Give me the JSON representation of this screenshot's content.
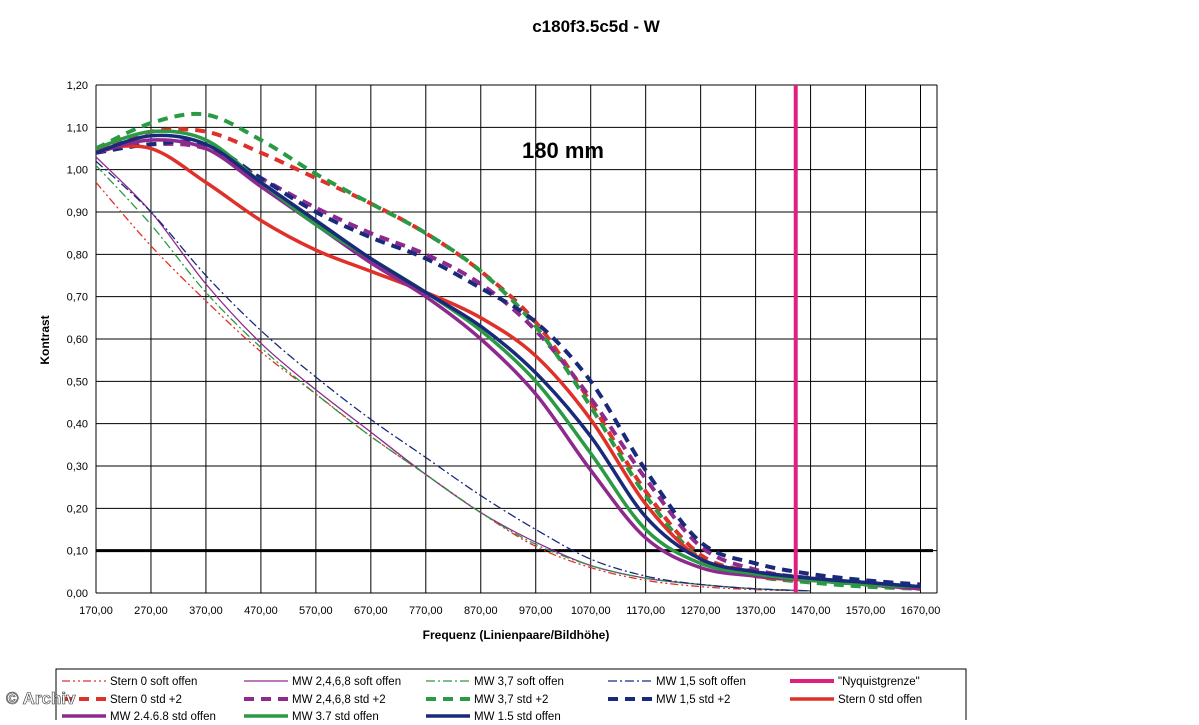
{
  "chart_data": {
    "type": "line",
    "title": "c180f3.5c5d - W",
    "xlabel": "Frequenz (Linienpaare/Bildhöhe)",
    "ylabel": "Kontrast",
    "annotation": "180 mm",
    "watermark": "© Archiv",
    "xlim": [
      170,
      1700
    ],
    "ylim": [
      0,
      1.2
    ],
    "x_ticks": [
      "170,00",
      "270,00",
      "370,00",
      "470,00",
      "570,00",
      "670,00",
      "770,00",
      "870,00",
      "970,00",
      "1070,00",
      "1170,00",
      "1270,00",
      "1370,00",
      "1470,00",
      "1570,00",
      "1670,00"
    ],
    "y_ticks": [
      "0,00",
      "0,10",
      "0,20",
      "0,30",
      "0,40",
      "0,50",
      "0,60",
      "0,70",
      "0,80",
      "0,90",
      "1,00",
      "1,10",
      "1,20"
    ],
    "grid": true,
    "legend_position": "bottom",
    "threshold": {
      "y": 0.1
    },
    "nyquist_x": 1443,
    "series": [
      {
        "name": "Stern 0 soft offen",
        "color": "#e0302a",
        "dash": "dashdotdot",
        "width": 1.3,
        "points": [
          [
            170,
            0.97
          ],
          [
            270,
            0.82
          ],
          [
            370,
            0.69
          ],
          [
            470,
            0.57
          ],
          [
            570,
            0.47
          ],
          [
            670,
            0.37
          ],
          [
            770,
            0.28
          ],
          [
            870,
            0.19
          ],
          [
            970,
            0.11
          ],
          [
            1070,
            0.06
          ],
          [
            1170,
            0.03
          ],
          [
            1270,
            0.015
          ],
          [
            1370,
            0.008
          ],
          [
            1470,
            0.005
          ]
        ]
      },
      {
        "name": "MW 2,4,6,8 soft offen",
        "color": "#8e2a8e",
        "dash": "solid",
        "width": 1.3,
        "points": [
          [
            170,
            1.03
          ],
          [
            270,
            0.9
          ],
          [
            370,
            0.73
          ],
          [
            470,
            0.59
          ],
          [
            570,
            0.48
          ],
          [
            670,
            0.38
          ],
          [
            770,
            0.28
          ],
          [
            870,
            0.19
          ],
          [
            970,
            0.12
          ],
          [
            1070,
            0.065
          ],
          [
            1170,
            0.035
          ],
          [
            1270,
            0.02
          ],
          [
            1370,
            0.01
          ],
          [
            1470,
            0.005
          ]
        ]
      },
      {
        "name": "MW 3,7 soft offen",
        "color": "#2a9a44",
        "dash": "dashdot",
        "width": 1.3,
        "points": [
          [
            170,
            1.01
          ],
          [
            270,
            0.87
          ],
          [
            370,
            0.71
          ],
          [
            470,
            0.58
          ],
          [
            570,
            0.47
          ],
          [
            670,
            0.37
          ],
          [
            770,
            0.28
          ],
          [
            870,
            0.19
          ],
          [
            970,
            0.115
          ],
          [
            1070,
            0.065
          ],
          [
            1170,
            0.035
          ],
          [
            1270,
            0.02
          ],
          [
            1370,
            0.01
          ],
          [
            1470,
            0.005
          ]
        ]
      },
      {
        "name": "MW 1,5 soft offen",
        "color": "#1a2a7a",
        "dash": "dashdot",
        "width": 1.3,
        "points": [
          [
            170,
            1.02
          ],
          [
            270,
            0.9
          ],
          [
            370,
            0.75
          ],
          [
            470,
            0.62
          ],
          [
            570,
            0.51
          ],
          [
            670,
            0.41
          ],
          [
            770,
            0.32
          ],
          [
            870,
            0.23
          ],
          [
            970,
            0.15
          ],
          [
            1070,
            0.08
          ],
          [
            1170,
            0.04
          ],
          [
            1270,
            0.02
          ],
          [
            1370,
            0.01
          ],
          [
            1470,
            0.005
          ]
        ]
      },
      {
        "name": "\"Nyquistgrenze\"",
        "color": "#e0207f",
        "dash": "solid",
        "width": 4,
        "vertical": true,
        "points": []
      },
      {
        "name": "Stern 0 std +2",
        "color": "#e0302a",
        "dash": "dashed",
        "width": 4,
        "points": [
          [
            170,
            1.05
          ],
          [
            270,
            1.09
          ],
          [
            370,
            1.09
          ],
          [
            470,
            1.04
          ],
          [
            570,
            0.98
          ],
          [
            670,
            0.92
          ],
          [
            770,
            0.85
          ],
          [
            870,
            0.76
          ],
          [
            970,
            0.64
          ],
          [
            1070,
            0.45
          ],
          [
            1170,
            0.24
          ],
          [
            1270,
            0.09
          ],
          [
            1370,
            0.05
          ],
          [
            1470,
            0.035
          ],
          [
            1570,
            0.02
          ],
          [
            1670,
            0.01
          ]
        ]
      },
      {
        "name": "MW 2,4,6,8 std +2",
        "color": "#8e2a8e",
        "dash": "dashed",
        "width": 4,
        "points": [
          [
            170,
            1.04
          ],
          [
            270,
            1.06
          ],
          [
            370,
            1.05
          ],
          [
            470,
            0.98
          ],
          [
            570,
            0.91
          ],
          [
            670,
            0.85
          ],
          [
            770,
            0.8
          ],
          [
            870,
            0.73
          ],
          [
            970,
            0.62
          ],
          [
            1070,
            0.46
          ],
          [
            1170,
            0.27
          ],
          [
            1270,
            0.11
          ],
          [
            1370,
            0.055
          ],
          [
            1470,
            0.035
          ],
          [
            1570,
            0.025
          ],
          [
            1670,
            0.015
          ]
        ]
      },
      {
        "name": "MW 3,7 std +2",
        "color": "#2a9a44",
        "dash": "dashed",
        "width": 4,
        "points": [
          [
            170,
            1.05
          ],
          [
            270,
            1.11
          ],
          [
            370,
            1.13
          ],
          [
            470,
            1.07
          ],
          [
            570,
            0.99
          ],
          [
            670,
            0.92
          ],
          [
            770,
            0.85
          ],
          [
            870,
            0.76
          ],
          [
            970,
            0.63
          ],
          [
            1070,
            0.44
          ],
          [
            1170,
            0.23
          ],
          [
            1270,
            0.08
          ],
          [
            1370,
            0.04
          ],
          [
            1470,
            0.025
          ],
          [
            1570,
            0.015
          ],
          [
            1670,
            0.01
          ]
        ]
      },
      {
        "name": "MW 1,5 std +2",
        "color": "#1a2a7a",
        "dash": "dashed",
        "width": 4,
        "points": [
          [
            170,
            1.04
          ],
          [
            270,
            1.06
          ],
          [
            370,
            1.06
          ],
          [
            470,
            0.98
          ],
          [
            570,
            0.9
          ],
          [
            670,
            0.84
          ],
          [
            770,
            0.79
          ],
          [
            870,
            0.72
          ],
          [
            970,
            0.64
          ],
          [
            1070,
            0.5
          ],
          [
            1170,
            0.29
          ],
          [
            1270,
            0.12
          ],
          [
            1370,
            0.07
          ],
          [
            1470,
            0.045
          ],
          [
            1570,
            0.03
          ],
          [
            1670,
            0.02
          ]
        ]
      },
      {
        "name": "Stern 0 std offen",
        "color": "#e0302a",
        "dash": "solid",
        "width": 3.5,
        "points": [
          [
            170,
            1.05
          ],
          [
            270,
            1.05
          ],
          [
            370,
            0.97
          ],
          [
            470,
            0.88
          ],
          [
            570,
            0.81
          ],
          [
            670,
            0.76
          ],
          [
            770,
            0.71
          ],
          [
            870,
            0.65
          ],
          [
            970,
            0.56
          ],
          [
            1070,
            0.41
          ],
          [
            1170,
            0.21
          ],
          [
            1270,
            0.08
          ],
          [
            1370,
            0.04
          ],
          [
            1470,
            0.03
          ],
          [
            1570,
            0.02
          ],
          [
            1670,
            0.01
          ]
        ]
      },
      {
        "name": "MW 2,4,6,8 std offen",
        "color": "#8e2a8e",
        "dash": "solid",
        "width": 3.5,
        "points": [
          [
            170,
            1.04
          ],
          [
            270,
            1.07
          ],
          [
            370,
            1.05
          ],
          [
            470,
            0.96
          ],
          [
            570,
            0.87
          ],
          [
            670,
            0.78
          ],
          [
            770,
            0.7
          ],
          [
            870,
            0.6
          ],
          [
            970,
            0.47
          ],
          [
            1070,
            0.29
          ],
          [
            1170,
            0.13
          ],
          [
            1270,
            0.06
          ],
          [
            1370,
            0.04
          ],
          [
            1470,
            0.03
          ],
          [
            1570,
            0.02
          ],
          [
            1670,
            0.01
          ]
        ]
      },
      {
        "name": "MW 3,7 std offen",
        "color": "#2a9a44",
        "dash": "solid",
        "width": 3.5,
        "points": [
          [
            170,
            1.05
          ],
          [
            270,
            1.09
          ],
          [
            370,
            1.07
          ],
          [
            470,
            0.97
          ],
          [
            570,
            0.87
          ],
          [
            670,
            0.79
          ],
          [
            770,
            0.71
          ],
          [
            870,
            0.62
          ],
          [
            970,
            0.5
          ],
          [
            1070,
            0.33
          ],
          [
            1170,
            0.15
          ],
          [
            1270,
            0.07
          ],
          [
            1370,
            0.045
          ],
          [
            1470,
            0.03
          ],
          [
            1570,
            0.02
          ],
          [
            1670,
            0.015
          ]
        ]
      },
      {
        "name": "MW 1,5 std offen",
        "color": "#1a2a7a",
        "dash": "solid",
        "width": 3.5,
        "points": [
          [
            170,
            1.04
          ],
          [
            270,
            1.08
          ],
          [
            370,
            1.06
          ],
          [
            470,
            0.97
          ],
          [
            570,
            0.88
          ],
          [
            670,
            0.79
          ],
          [
            770,
            0.71
          ],
          [
            870,
            0.63
          ],
          [
            970,
            0.52
          ],
          [
            1070,
            0.37
          ],
          [
            1170,
            0.18
          ],
          [
            1270,
            0.08
          ],
          [
            1370,
            0.05
          ],
          [
            1470,
            0.035
          ],
          [
            1570,
            0.025
          ],
          [
            1670,
            0.015
          ]
        ]
      }
    ]
  }
}
